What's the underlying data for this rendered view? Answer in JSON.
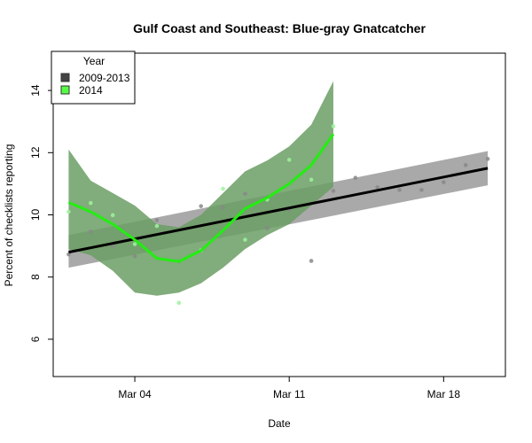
{
  "chart_data": {
    "type": "scatter",
    "title": "Gulf Coast and Southeast: Blue-gray Gnatcatcher",
    "xlabel": "Date",
    "ylabel": "Percent of checklists reporting",
    "x_unit": "day of March",
    "xlim": [
      0.3,
      20.8
    ],
    "ylim": [
      4.8,
      15.2
    ],
    "yticks": [
      6,
      8,
      10,
      12,
      14
    ],
    "xticks": [
      {
        "day": 4,
        "label": "Mar 04"
      },
      {
        "day": 11,
        "label": "Mar 11"
      },
      {
        "day": 18,
        "label": "Mar 18"
      }
    ],
    "grid": false,
    "legend": {
      "title": "Year",
      "placement": "top-left",
      "entries": [
        {
          "label": "2009-2013",
          "color": "#444444"
        },
        {
          "label": "2014",
          "color": "#55ff44"
        }
      ]
    },
    "series": [
      {
        "name": "2009-2013",
        "point_color": "#888888",
        "line_color": "#000000",
        "band_color": "#a9a9a9",
        "x": [
          1,
          2,
          3,
          4,
          5,
          6,
          7,
          8,
          9,
          10,
          11,
          12,
          13,
          14,
          15,
          16,
          17,
          18,
          19,
          20
        ],
        "y": [
          8.73,
          9.46,
          9.0,
          8.67,
          9.83,
          8.5,
          10.28,
          10.24,
          10.68,
          9.57,
          10.16,
          8.52,
          10.77,
          11.19,
          10.89,
          10.8,
          10.8,
          11.05,
          11.6,
          11.8
        ],
        "fit_x": [
          1,
          20
        ],
        "fit_y": [
          8.8,
          11.5
        ],
        "band_lower": [
          8.3,
          10.95
        ],
        "band_upper": [
          9.35,
          12.05
        ]
      },
      {
        "name": "2014",
        "point_color": "#9cf59c",
        "line_color": "#22ee11",
        "band_color": "#6b9e64",
        "x": [
          1,
          2,
          3,
          4,
          5,
          6,
          7,
          8,
          9,
          10,
          11,
          12,
          13
        ],
        "y": [
          10.1,
          10.38,
          9.99,
          9.06,
          9.64,
          7.17,
          8.86,
          10.84,
          9.2,
          10.49,
          11.77,
          11.13,
          12.85
        ],
        "fit_x": [
          1,
          2,
          3,
          4,
          5,
          6,
          7,
          8,
          9,
          10,
          11,
          12,
          13
        ],
        "fit_y": [
          10.4,
          10.1,
          9.7,
          9.2,
          8.6,
          8.5,
          8.85,
          9.5,
          10.2,
          10.55,
          11.0,
          11.6,
          12.6
        ],
        "band_lower": [
          8.9,
          8.7,
          8.2,
          7.5,
          7.4,
          7.5,
          7.8,
          8.3,
          8.9,
          9.35,
          9.7,
          10.3,
          10.9
        ],
        "band_upper": [
          12.1,
          11.1,
          10.7,
          10.3,
          9.7,
          9.6,
          10.0,
          10.7,
          11.4,
          11.75,
          12.2,
          12.9,
          14.3
        ]
      }
    ]
  }
}
